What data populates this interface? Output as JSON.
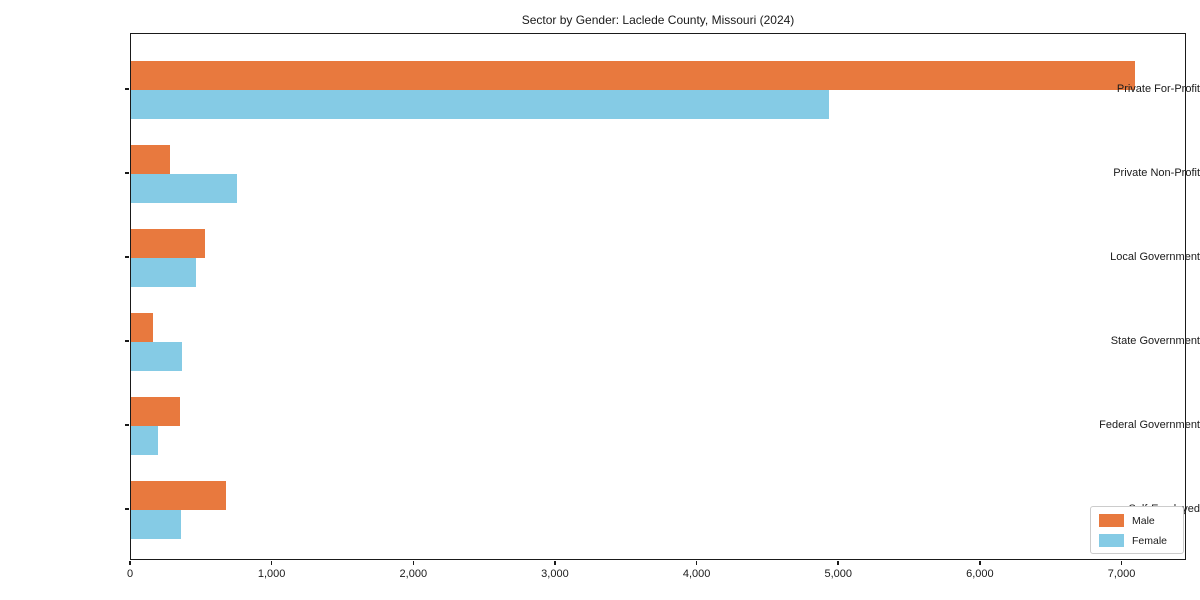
{
  "chart_data": {
    "type": "bar",
    "orientation": "horizontal",
    "title": "Sector by Gender: Laclede County, Missouri (2024)",
    "categories": [
      "Private For-Profit",
      "Private Non-Profit",
      "Local Government",
      "State Government",
      "Federal Government",
      "Self-Employed"
    ],
    "series": [
      {
        "name": "Male",
        "color": "#e8793e",
        "values": [
          7100,
          275,
          520,
          155,
          345,
          670
        ]
      },
      {
        "name": "Female",
        "color": "#85cbe5",
        "values": [
          4940,
          750,
          460,
          360,
          190,
          355
        ]
      }
    ],
    "xlim": [
      0,
      7455
    ],
    "x_ticks": [
      0,
      1000,
      2000,
      3000,
      4000,
      5000,
      6000,
      7000
    ],
    "x_tick_labels": [
      "0",
      "1,000",
      "2,000",
      "3,000",
      "4,000",
      "5,000",
      "6,000",
      "7,000"
    ],
    "xlabel": "",
    "ylabel": "",
    "grid": false,
    "legend_position": "lower right"
  }
}
